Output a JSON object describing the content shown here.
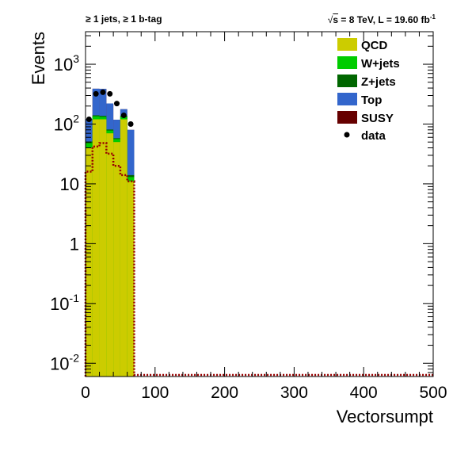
{
  "header": {
    "left": "≥ 1 jets, ≥ 1 b-tag",
    "right_prefix": "s",
    "right_text": " = 8 TeV, L = 19.60 fb",
    "right_exp": "-1"
  },
  "chart_data": {
    "type": "bar",
    "stacked": true,
    "log_y": true,
    "xlabel": "Vectorsumpt",
    "ylabel": "Events",
    "xlim": [
      0,
      500
    ],
    "ylim": [
      0.006,
      3500
    ],
    "grid": false,
    "legend_position": "top-right",
    "x_ticks": [
      "0",
      "100",
      "200",
      "300",
      "400",
      "500"
    ],
    "y_ticks": [
      {
        "base": "10",
        "exp": "-2",
        "value": 0.01
      },
      {
        "base": "10",
        "exp": "-1",
        "value": 0.1
      },
      {
        "base": "1",
        "exp": "",
        "value": 1
      },
      {
        "base": "10",
        "exp": "",
        "value": 10
      },
      {
        "base": "10",
        "exp": "2",
        "value": 100
      },
      {
        "base": "10",
        "exp": "3",
        "value": 1000
      }
    ],
    "bin_edges": [
      0,
      10,
      20,
      30,
      40,
      50,
      60,
      70
    ],
    "series": [
      {
        "name": "QCD",
        "color": "#cccc00",
        "values": [
          40,
          120,
          120,
          70,
          50,
          120,
          11
        ]
      },
      {
        "name": "W+jets",
        "color": "#00cc00",
        "values": [
          8,
          15,
          12,
          8,
          6,
          12,
          2
        ]
      },
      {
        "name": "Z+jets",
        "color": "#006600",
        "values": [
          3,
          5,
          5,
          3,
          2,
          5,
          1
        ]
      },
      {
        "name": "Top",
        "color": "#3366cc",
        "values": [
          70,
          250,
          250,
          140,
          60,
          40,
          66
        ]
      },
      {
        "name": "SUSY",
        "color": "#660000",
        "values": [
          0,
          0,
          0,
          0,
          0,
          0,
          0
        ]
      }
    ],
    "data_points": {
      "name": "data",
      "x": [
        5,
        15,
        25,
        35,
        45,
        55,
        65
      ],
      "y": [
        120,
        320,
        340,
        320,
        220,
        140,
        100
      ]
    },
    "susy_overlay": {
      "color": "#990000",
      "values": [
        16,
        42,
        48,
        32,
        20,
        14,
        11
      ]
    }
  }
}
